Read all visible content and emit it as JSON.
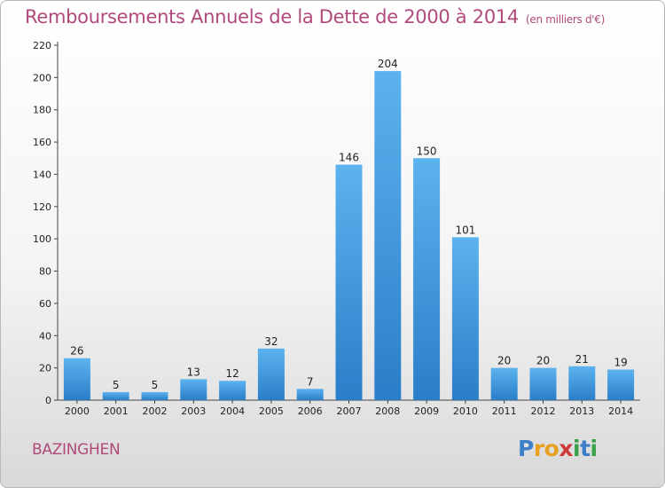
{
  "title": "Remboursements Annuels de la Dette de 2000 à 2014",
  "subtitle": "(en milliers d'€)",
  "town": "BAZINGHEN",
  "logo": {
    "letters": [
      "P",
      "r",
      "o",
      "x",
      "i",
      "t",
      "i"
    ],
    "colors": [
      "#3d7fc8",
      "#e8a020",
      "#e8a020",
      "#d03a3a",
      "#3aa24a",
      "#3d7fc8",
      "#3aa24a"
    ]
  },
  "chart_data": {
    "type": "bar",
    "categories": [
      "2000",
      "2001",
      "2002",
      "2003",
      "2004",
      "2005",
      "2006",
      "2007",
      "2008",
      "2009",
      "2010",
      "2011",
      "2012",
      "2013",
      "2014"
    ],
    "values": [
      26,
      5,
      5,
      13,
      12,
      32,
      7,
      146,
      204,
      150,
      101,
      20,
      20,
      21,
      19
    ],
    "title": "Remboursements Annuels de la Dette de 2000 à 2014",
    "xlabel": "",
    "ylabel": "",
    "ylim": [
      0,
      220
    ],
    "yticks": [
      0,
      20,
      40,
      60,
      80,
      100,
      120,
      140,
      160,
      180,
      200,
      220
    ],
    "grid": false,
    "bar_color": "#4a9fe0"
  }
}
